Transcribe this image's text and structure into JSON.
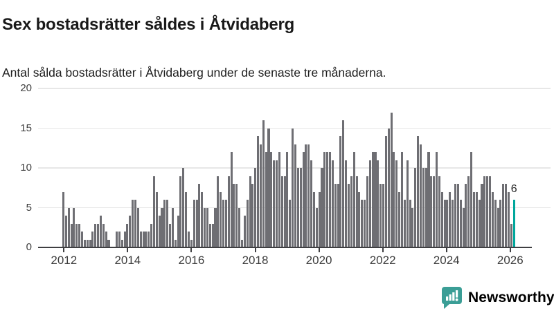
{
  "header": {
    "title": "Sex bostadsrätter såldes i Åtvidaberg",
    "subtitle": "Antal sålda bostadsrätter i Åtvidaberg under de senaste tre månaderna."
  },
  "chart_data": {
    "type": "bar",
    "title": "Sex bostadsrätter såldes i Åtvidaberg",
    "subtitle": "Antal sålda bostadsrätter i Åtvidaberg under de senaste tre månaderna.",
    "frequency": "monthly",
    "x_start": "2012-01",
    "x_end": "2026-02",
    "values": [
      7,
      4,
      5,
      3,
      5,
      3,
      3,
      2,
      1,
      1,
      1,
      2,
      3,
      3,
      4,
      3,
      2,
      1,
      0,
      0,
      2,
      2,
      1,
      2,
      3,
      4,
      6,
      6,
      5,
      2,
      2,
      2,
      2,
      3,
      9,
      7,
      4,
      5,
      6,
      6,
      3,
      5,
      1,
      4,
      9,
      10,
      7,
      2,
      1,
      6,
      6,
      8,
      7,
      5,
      5,
      3,
      3,
      5,
      9,
      7,
      6,
      6,
      9,
      12,
      8,
      8,
      5,
      1,
      4,
      6,
      9,
      8,
      10,
      14,
      13,
      16,
      12,
      15,
      12,
      11,
      11,
      12,
      9,
      9,
      12,
      6,
      15,
      13,
      10,
      10,
      12,
      13,
      13,
      11,
      7,
      5,
      7,
      10,
      12,
      12,
      12,
      11,
      8,
      8,
      14,
      16,
      11,
      8,
      9,
      12,
      9,
      7,
      6,
      6,
      9,
      11,
      12,
      12,
      11,
      8,
      8,
      14,
      15,
      17,
      12,
      11,
      7,
      12,
      6,
      11,
      6,
      5,
      10,
      14,
      13,
      10,
      10,
      12,
      9,
      9,
      12,
      9,
      7,
      6,
      6,
      7,
      6,
      8,
      8,
      6,
      5,
      8,
      9,
      12,
      7,
      7,
      6,
      8,
      9,
      9,
      9,
      7,
      6,
      5,
      6,
      8,
      8,
      7,
      3,
      6
    ],
    "highlight": {
      "value": 6,
      "label": "6"
    },
    "yticks": [
      0,
      5,
      10,
      15,
      20
    ],
    "ylim": [
      0,
      20
    ],
    "xticks": [
      "2012",
      "2014",
      "2016",
      "2018",
      "2020",
      "2022",
      "2024",
      "2026"
    ],
    "grid": true,
    "legend": "none",
    "colors": {
      "bar": "#6e6e73",
      "highlight": "#00a79c",
      "grid": "#e7e7e7",
      "axis": "#3f3f42",
      "tick_text": "#3d3d3d"
    }
  },
  "branding": {
    "logo_text": "Newsworthy",
    "logo_color": "#3b9e96",
    "logo_icon": "bar-chart-speech-bubble-icon"
  }
}
